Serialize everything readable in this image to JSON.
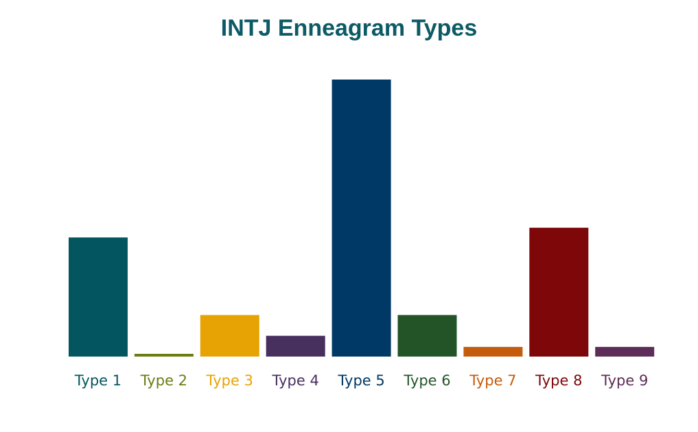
{
  "chart_data": {
    "type": "bar",
    "title": "INTJ Enneagram Types",
    "xlabel": "",
    "ylabel": "",
    "ylim": [
      0,
      100
    ],
    "grid": false,
    "legend": "none",
    "categories": [
      "Type 1",
      "Type 2",
      "Type 3",
      "Type 4",
      "Type 5",
      "Type 6",
      "Type 7",
      "Type 8",
      "Type 9"
    ],
    "values": [
      43,
      1,
      15,
      7.5,
      100,
      15,
      3.5,
      46.5,
      3.5
    ],
    "colors": [
      "#03565f",
      "#687d12",
      "#e7a303",
      "#472f5e",
      "#013966",
      "#235428",
      "#c55b0c",
      "#7d0709",
      "#5e2c58"
    ],
    "title_color": "#0b5a66"
  }
}
